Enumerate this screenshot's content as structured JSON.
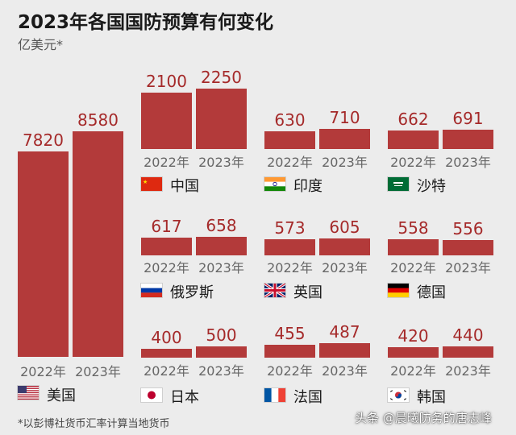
{
  "title": "2023年各国国防预算有何变化",
  "subtitle": "亿美元*",
  "footnote": "*以彭博社货币汇率计算当地货币",
  "watermark": "头条 @晨曦防务的唐志峰",
  "colors": {
    "bar": "#b33a3a",
    "value": "#a52a2a",
    "background": "#ececec"
  },
  "chart_data": {
    "type": "bar",
    "title": "2023年各国国防预算有何变化",
    "unit": "亿美元*",
    "years": [
      "2022年",
      "2023年"
    ],
    "panels": [
      {
        "id": "usa",
        "country": "美国",
        "flag": "us-flag",
        "values": [
          7820,
          8580
        ],
        "labels": [
          "7820",
          "8580"
        ]
      },
      {
        "id": "china",
        "country": "中国",
        "flag": "china-flag",
        "values": [
          2100,
          2250
        ],
        "labels": [
          "2100",
          "2250"
        ]
      },
      {
        "id": "india",
        "country": "印度",
        "flag": "india-flag",
        "values": [
          630,
          710
        ],
        "labels": [
          "630",
          "710"
        ]
      },
      {
        "id": "saudi",
        "country": "沙特",
        "flag": "saudi-flag",
        "values": [
          662,
          691
        ],
        "labels": [
          "662",
          "691"
        ]
      },
      {
        "id": "russia",
        "country": "俄罗斯",
        "flag": "russia-flag",
        "values": [
          617,
          658
        ],
        "labels": [
          "617",
          "658"
        ]
      },
      {
        "id": "uk",
        "country": "英国",
        "flag": "uk-flag",
        "values": [
          573,
          605
        ],
        "labels": [
          "573",
          "605"
        ]
      },
      {
        "id": "germany",
        "country": "德国",
        "flag": "germany-flag",
        "values": [
          558,
          556
        ],
        "labels": [
          "558",
          "556"
        ]
      },
      {
        "id": "japan",
        "country": "日本",
        "flag": "japan-flag",
        "values": [
          400,
          500
        ],
        "labels": [
          "400",
          "500"
        ]
      },
      {
        "id": "france",
        "country": "法国",
        "flag": "france-flag",
        "values": [
          455,
          487
        ],
        "labels": [
          "455",
          "487"
        ]
      },
      {
        "id": "korea",
        "country": "韩国",
        "flag": "korea-flag",
        "values": [
          420,
          440
        ],
        "labels": [
          "420",
          "440"
        ]
      }
    ]
  }
}
